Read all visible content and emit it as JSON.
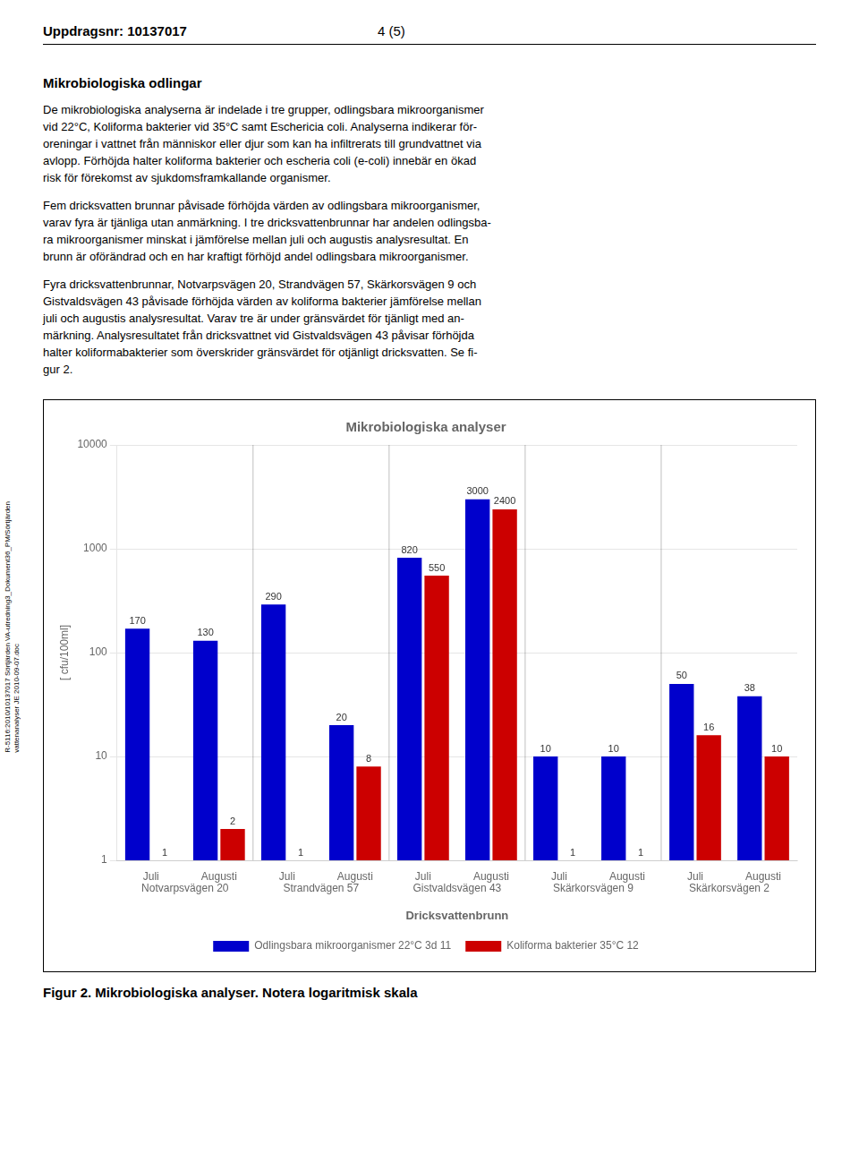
{
  "chart_data": {
    "type": "bar",
    "title": "Mikrobiologiska analyser",
    "ylabel": "[ cfu/100ml]",
    "xlabel": "Dricksvattenbrunn",
    "categories": [
      "Juli",
      "Augusti",
      "Juli",
      "Augusti",
      "Juli",
      "Augusti",
      "Juli",
      "Augusti",
      "Juli",
      "Augusti"
    ],
    "groups": [
      "Notvarpsvägen 20",
      "Strandvägen 57",
      "Gistvaldsvägen 43",
      "Skärkorsvägen 9",
      "Skärkorsvägen 2"
    ],
    "series": [
      {
        "name": "Odlingsbara mikroorganismer 22°C 3d 11",
        "color": "#0000CC",
        "values": [
          170,
          130,
          290,
          20,
          820,
          3000,
          10,
          10,
          50,
          38
        ]
      },
      {
        "name": "Koliforma bakterier 35°C 12",
        "color": "#CC0000",
        "values": [
          1,
          2,
          1,
          8,
          550,
          2400,
          1,
          1,
          16,
          10
        ]
      }
    ],
    "log": "y",
    "ylim": [
      1,
      10000
    ],
    "yticks": [
      1,
      10,
      100,
      1000,
      10000
    ],
    "grid": true,
    "legend": "bottom",
    "data_labels": true,
    "annotations": [
      "Uppdragsnr:  10137017",
      "4 (5)",
      "Mikrobiologiska odlingar",
      "De mikrobiologiska analyserna är indelade i tre grupper, odlingsbara mikroorganismer\nvid 22°C, Koliforma bakterier vid 35°C samt Eschericia coli. Analyserna indikerar för-\noreningar i vattnet från människor eller djur som kan ha infiltrerats till grundvattnet via\navlopp. Förhöjda halter koliforma bakterier och escheria coli (e-coli) innebär en ökad\nrisk för förekomst av sjukdomsframkallande organismer.",
      "Fem dricksvatten brunnar påvisade förhöjda värden av odlingsbara mikroorganismer,\nvarav fyra är tjänliga utan anmärkning. I tre dricksvattenbrunnar har andelen odlingsba-\nra mikroorganismer minskat i jämförelse mellan juli och augustis analysresultat. En\nbrunn är oförändrad och en har kraftigt förhöjd andel odlingsbara mikroorganismer.",
      "Fyra dricksvattenbrunnar, Notvarpsvägen 20, Strandvägen 57, Skärkorsvägen 9 och\nGistvaldsvägen 43 påvisade förhöjda värden av koliforma bakterier jämförelse mellan\njuli och augustis analysresultat. Varav tre är under gränsvärdet för tjänligt med an-\nmärkning. Analysresultatet från dricksvattnet vid Gistvaldsvägen 43 påvisar förhöjda\nhalter koliformabakterier som överskrider gränsvärdet för otjänligt dricksvatten. Se fi-\ngur 2.",
      "Figur 2. Mikrobiologiska analyser. Notera logaritmisk skala",
      "R-5116:2010/10137017 Sörtjärden VA-utredning3_Dokument36_PM/Sörtjärden\nvattenanalyser JE 2010-09-07.doc"
    ]
  }
}
